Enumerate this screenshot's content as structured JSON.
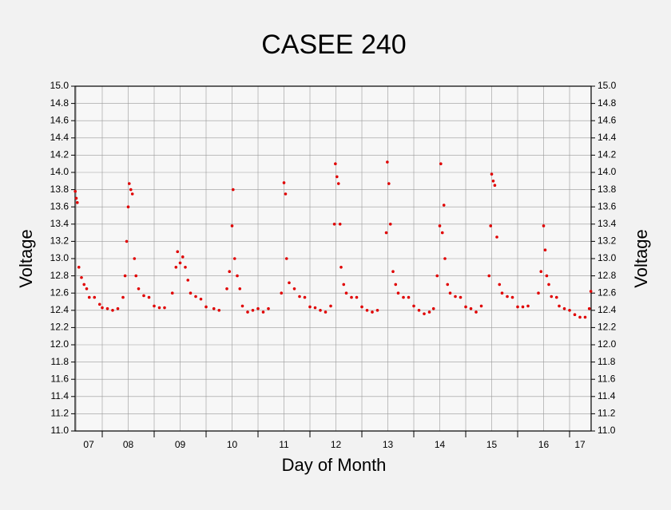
{
  "chart_data": {
    "type": "scatter",
    "title": "CASEE 240",
    "xlabel": "Day of Month",
    "ylabel": "Voltage",
    "color": "#e00000",
    "grid": true,
    "xlim": [
      7.477,
      17.415
    ],
    "ylim": [
      11,
      15
    ],
    "xticks": [
      {
        "value": 7.74,
        "label": "07"
      },
      {
        "value": 8.5,
        "label": "08"
      },
      {
        "value": 9.5,
        "label": "09"
      },
      {
        "value": 10.5,
        "label": "10"
      },
      {
        "value": 11.5,
        "label": "11"
      },
      {
        "value": 12.5,
        "label": "12"
      },
      {
        "value": 13.5,
        "label": "13"
      },
      {
        "value": 14.5,
        "label": "14"
      },
      {
        "value": 15.5,
        "label": "15"
      },
      {
        "value": 16.5,
        "label": "16"
      },
      {
        "value": 17.2,
        "label": "17"
      }
    ],
    "xgrid": [
      7.5,
      8,
      8.5,
      9,
      9.5,
      10,
      10.5,
      11,
      11.5,
      12,
      12.5,
      13,
      13.5,
      14,
      14.5,
      15,
      15.5,
      16,
      16.5,
      17
    ],
    "yticks": [
      {
        "value": 11,
        "label": "11.0"
      },
      11.2,
      11.4,
      11.6,
      11.8,
      {
        "value": 12,
        "label": "12.0"
      },
      12.2,
      12.4,
      12.6,
      12.8,
      {
        "value": 13,
        "label": "13.0"
      },
      13.2,
      13.4,
      13.6,
      13.8,
      {
        "value": 14,
        "label": "14.0"
      },
      14.2,
      14.4,
      14.6,
      14.8,
      {
        "value": 15,
        "label": "15.0"
      }
    ],
    "x": [
      7.48,
      7.5,
      7.52,
      7.55,
      7.6,
      7.65,
      7.7,
      7.75,
      7.85,
      7.95,
      8.0,
      8.1,
      8.2,
      8.3,
      8.4,
      8.44,
      8.47,
      8.5,
      8.52,
      8.55,
      8.58,
      8.62,
      8.65,
      8.7,
      8.8,
      8.9,
      9.0,
      9.1,
      9.2,
      9.35,
      9.42,
      9.45,
      9.5,
      9.55,
      9.6,
      9.65,
      9.7,
      9.8,
      9.9,
      10.0,
      10.15,
      10.25,
      10.4,
      10.45,
      10.5,
      10.52,
      10.55,
      10.6,
      10.65,
      10.7,
      10.8,
      10.9,
      11.0,
      11.1,
      11.2,
      11.45,
      11.5,
      11.53,
      11.55,
      11.6,
      11.7,
      11.8,
      11.9,
      12.0,
      12.1,
      12.2,
      12.3,
      12.4,
      12.47,
      12.49,
      12.52,
      12.55,
      12.58,
      12.6,
      12.65,
      12.7,
      12.8,
      12.9,
      13.0,
      13.1,
      13.2,
      13.3,
      13.47,
      13.49,
      13.52,
      13.55,
      13.6,
      13.65,
      13.7,
      13.8,
      13.9,
      14.0,
      14.1,
      14.2,
      14.3,
      14.38,
      14.45,
      14.5,
      14.52,
      14.55,
      14.58,
      14.6,
      14.65,
      14.7,
      14.8,
      14.9,
      15.0,
      15.1,
      15.2,
      15.3,
      15.45,
      15.48,
      15.5,
      15.53,
      15.56,
      15.6,
      15.65,
      15.7,
      15.8,
      15.9,
      16.0,
      16.1,
      16.2,
      16.4,
      16.45,
      16.5,
      16.53,
      16.56,
      16.6,
      16.65,
      16.75,
      16.8,
      16.9,
      17.0,
      17.1,
      17.2,
      17.3,
      17.38,
      17.41
    ],
    "values": [
      13.78,
      13.7,
      13.65,
      12.9,
      12.78,
      12.7,
      12.65,
      12.55,
      12.55,
      12.47,
      12.43,
      12.42,
      12.4,
      12.42,
      12.55,
      12.8,
      13.2,
      13.6,
      13.87,
      13.8,
      13.75,
      13.0,
      12.8,
      12.65,
      12.57,
      12.55,
      12.45,
      12.43,
      12.43,
      12.6,
      12.9,
      13.08,
      12.95,
      13.02,
      12.9,
      12.75,
      12.6,
      12.56,
      12.53,
      12.44,
      12.42,
      12.4,
      12.65,
      12.85,
      13.38,
      13.8,
      13.0,
      12.8,
      12.65,
      12.45,
      12.38,
      12.4,
      12.42,
      12.38,
      12.42,
      12.6,
      13.88,
      13.75,
      13.0,
      12.72,
      12.65,
      12.56,
      12.55,
      12.44,
      12.43,
      12.4,
      12.38,
      12.45,
      13.4,
      14.1,
      13.95,
      13.87,
      13.4,
      12.9,
      12.7,
      12.6,
      12.55,
      12.55,
      12.44,
      12.4,
      12.38,
      12.4,
      13.3,
      14.12,
      13.87,
      13.4,
      12.85,
      12.7,
      12.6,
      12.55,
      12.55,
      12.45,
      12.4,
      12.36,
      12.38,
      12.42,
      12.8,
      13.38,
      14.1,
      13.3,
      13.62,
      13.0,
      12.7,
      12.6,
      12.56,
      12.55,
      12.44,
      12.42,
      12.38,
      12.45,
      12.8,
      13.38,
      13.98,
      13.9,
      13.85,
      13.25,
      12.7,
      12.6,
      12.56,
      12.55,
      12.44,
      12.44,
      12.45,
      12.6,
      12.85,
      13.38,
      13.1,
      12.8,
      12.7,
      12.56,
      12.55,
      12.45,
      12.42,
      12.4,
      12.35,
      12.32,
      12.32,
      12.42,
      12.62
    ]
  }
}
